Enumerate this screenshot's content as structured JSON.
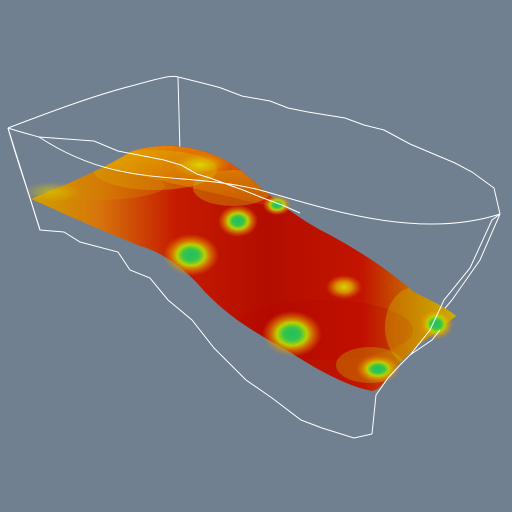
{
  "scene": {
    "background_color": "#708090",
    "bounding_box_color": "#ffffff",
    "surface_colormap": [
      "#b30d00",
      "#cc2a00",
      "#d95b00",
      "#d9a600",
      "#c9d200",
      "#3fb94f",
      "#1cc06a"
    ]
  }
}
